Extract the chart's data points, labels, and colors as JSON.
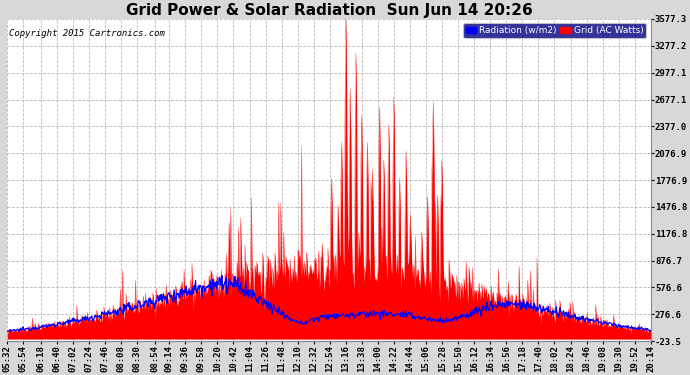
{
  "title": "Grid Power & Solar Radiation  Sun Jun 14 20:26",
  "copyright": "Copyright 2015 Cartronics.com",
  "legend_radiation": "Radiation (w/m2)",
  "legend_grid": "Grid (AC Watts)",
  "yticks": [
    3577.3,
    3277.2,
    2977.1,
    2677.1,
    2377.0,
    2076.9,
    1776.9,
    1476.8,
    1176.8,
    876.7,
    576.6,
    276.6,
    -23.5
  ],
  "ylim": [
    -23.5,
    3577.3
  ],
  "bg_color": "#d8d8d8",
  "plot_bg_color": "#ffffff",
  "radiation_color": "#0000ff",
  "grid_color": "#ff0000",
  "title_fontsize": 11,
  "axis_fontsize": 6.5,
  "xtick_labels": [
    "05:32",
    "05:54",
    "06:18",
    "06:40",
    "07:02",
    "07:24",
    "07:46",
    "08:08",
    "08:30",
    "08:54",
    "09:14",
    "09:36",
    "09:58",
    "10:20",
    "10:42",
    "11:04",
    "11:26",
    "11:48",
    "12:10",
    "12:32",
    "12:54",
    "13:16",
    "13:38",
    "14:00",
    "14:22",
    "14:44",
    "15:06",
    "15:28",
    "15:50",
    "16:12",
    "16:34",
    "16:56",
    "17:18",
    "17:40",
    "18:02",
    "18:24",
    "18:46",
    "19:08",
    "19:30",
    "19:52",
    "20:14"
  ]
}
